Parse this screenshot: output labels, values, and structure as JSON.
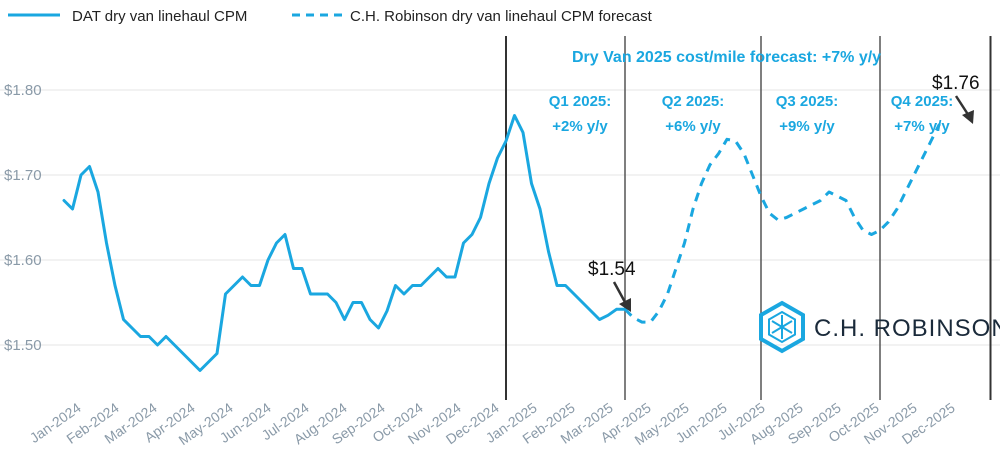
{
  "chart_data": {
    "type": "line",
    "legend": {
      "placement": "top-left",
      "entries": [
        {
          "label": "DAT dry van linehaul CPM",
          "style": "solid"
        },
        {
          "label": "C.H. Robinson dry van linehaul CPM forecast",
          "style": "dashed"
        }
      ]
    },
    "color": "#1aa7e0",
    "ylim": [
      1.44,
      1.88
    ],
    "y_ticks": [
      {
        "value": 1.5,
        "label": "$1.50"
      },
      {
        "value": 1.6,
        "label": "$1.60"
      },
      {
        "value": 1.7,
        "label": "$1.70"
      },
      {
        "value": 1.8,
        "label": "$1.80"
      }
    ],
    "grid": "horizontal",
    "x_ticks": [
      "Jan-2024",
      "Feb-2024",
      "Mar-2024",
      "Apr-2024",
      "May-2024",
      "Jun-2024",
      "Jul-2024",
      "Aug-2024",
      "Sep-2024",
      "Oct-2024",
      "Nov-2024",
      "Dec-2024",
      "Jan-2025",
      "Feb-2025",
      "Mar-2025",
      "Apr-2025",
      "May-2025",
      "Jun-2025",
      "Jul-2025",
      "Aug-2025",
      "Sep-2025",
      "Oct-2025",
      "Nov-2025",
      "Dec-2025"
    ],
    "series": [
      {
        "name": "DAT dry van linehaul CPM",
        "style": "solid",
        "points": [
          [
            0,
            1.67
          ],
          [
            0.25,
            1.66
          ],
          [
            0.5,
            1.7
          ],
          [
            0.75,
            1.71
          ],
          [
            1.0,
            1.68
          ],
          [
            1.25,
            1.62
          ],
          [
            1.5,
            1.57
          ],
          [
            1.75,
            1.53
          ],
          [
            2.0,
            1.52
          ],
          [
            2.25,
            1.51
          ],
          [
            2.5,
            1.51
          ],
          [
            2.75,
            1.5
          ],
          [
            3.0,
            1.51
          ],
          [
            3.25,
            1.5
          ],
          [
            3.5,
            1.49
          ],
          [
            3.75,
            1.48
          ],
          [
            4.0,
            1.47
          ],
          [
            4.25,
            1.48
          ],
          [
            4.5,
            1.49
          ],
          [
            4.75,
            1.56
          ],
          [
            5.0,
            1.57
          ],
          [
            5.25,
            1.58
          ],
          [
            5.5,
            1.57
          ],
          [
            5.75,
            1.57
          ],
          [
            6.0,
            1.6
          ],
          [
            6.25,
            1.62
          ],
          [
            6.5,
            1.63
          ],
          [
            6.75,
            1.59
          ],
          [
            7.0,
            1.59
          ],
          [
            7.25,
            1.56
          ],
          [
            7.5,
            1.56
          ],
          [
            7.75,
            1.56
          ],
          [
            8.0,
            1.55
          ],
          [
            8.25,
            1.53
          ],
          [
            8.5,
            1.55
          ],
          [
            8.75,
            1.55
          ],
          [
            9.0,
            1.53
          ],
          [
            9.25,
            1.52
          ],
          [
            9.5,
            1.54
          ],
          [
            9.75,
            1.57
          ],
          [
            10.0,
            1.56
          ],
          [
            10.25,
            1.57
          ],
          [
            10.5,
            1.57
          ],
          [
            10.75,
            1.58
          ],
          [
            11.0,
            1.59
          ],
          [
            11.25,
            1.58
          ],
          [
            11.5,
            1.58
          ],
          [
            11.75,
            1.62
          ],
          [
            12.0,
            1.63
          ],
          [
            12.25,
            1.65
          ],
          [
            12.5,
            1.69
          ],
          [
            12.75,
            1.72
          ],
          [
            13.0,
            1.74
          ],
          [
            13.25,
            1.77
          ],
          [
            13.5,
            1.75
          ],
          [
            13.75,
            1.69
          ],
          [
            14.0,
            1.66
          ],
          [
            14.25,
            1.61
          ],
          [
            14.5,
            1.57
          ],
          [
            14.75,
            1.57
          ],
          [
            15.0,
            1.56
          ],
          [
            15.25,
            1.55
          ],
          [
            15.5,
            1.54
          ],
          [
            15.75,
            1.53
          ],
          [
            16.0,
            1.535
          ],
          [
            16.25,
            1.542
          ],
          [
            16.5,
            1.542
          ]
        ]
      },
      {
        "name": "C.H. Robinson dry van linehaul CPM forecast",
        "style": "dashed",
        "points": [
          [
            16.5,
            1.542
          ],
          [
            16.75,
            1.532
          ],
          [
            17.0,
            1.527
          ],
          [
            17.25,
            1.527
          ],
          [
            17.5,
            1.54
          ],
          [
            17.75,
            1.56
          ],
          [
            18.0,
            1.59
          ],
          [
            18.25,
            1.62
          ],
          [
            18.5,
            1.66
          ],
          [
            18.75,
            1.69
          ],
          [
            19.0,
            1.712
          ],
          [
            19.25,
            1.725
          ],
          [
            19.5,
            1.742
          ],
          [
            19.75,
            1.74
          ],
          [
            20.0,
            1.725
          ],
          [
            20.25,
            1.7
          ],
          [
            20.5,
            1.675
          ],
          [
            20.75,
            1.655
          ],
          [
            21.0,
            1.647
          ],
          [
            21.25,
            1.65
          ],
          [
            21.5,
            1.655
          ],
          [
            21.75,
            1.66
          ],
          [
            22.0,
            1.665
          ],
          [
            22.25,
            1.67
          ],
          [
            22.5,
            1.68
          ],
          [
            22.75,
            1.675
          ],
          [
            23.0,
            1.67
          ],
          [
            23.25,
            1.65
          ],
          [
            23.5,
            1.635
          ],
          [
            23.75,
            1.63
          ],
          [
            24.0,
            1.635
          ],
          [
            24.25,
            1.645
          ],
          [
            24.5,
            1.66
          ],
          [
            24.75,
            1.68
          ],
          [
            25.0,
            1.7
          ],
          [
            25.25,
            1.72
          ],
          [
            25.5,
            1.74
          ],
          [
            25.75,
            1.76
          ]
        ]
      }
    ],
    "annotations": {
      "title": "Dry Van 2025 cost/mile forecast: +7% y/y",
      "quarters": [
        {
          "name": "Q1 2025:",
          "change": "+2% y/y"
        },
        {
          "name": "Q2 2025:",
          "change": "+6% y/y"
        },
        {
          "name": "Q3 2025:",
          "change": "+9% y/y"
        },
        {
          "name": "Q4 2025:",
          "change": "+7% y/y"
        }
      ],
      "callouts": [
        {
          "label": "$1.54",
          "x": 16.4,
          "y": 1.54
        },
        {
          "label": "$1.76",
          "x": 25.75,
          "y": 1.76
        }
      ],
      "quarter_dividers_x": [
        13,
        16.5,
        20.5,
        24,
        27.25
      ]
    }
  },
  "logo": {
    "text": "C.H. ROBINSON"
  }
}
